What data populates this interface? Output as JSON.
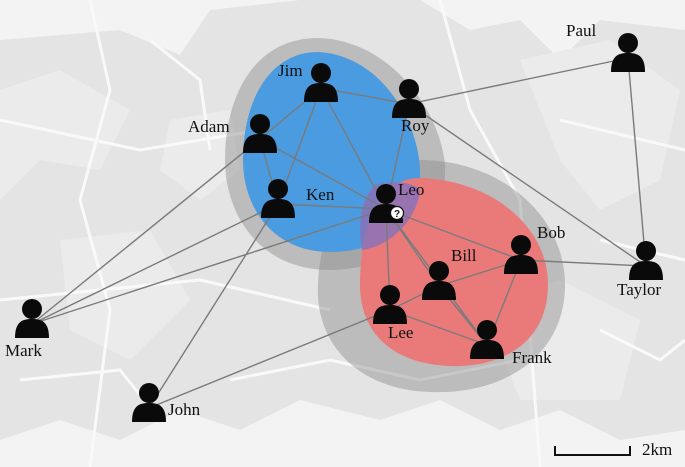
{
  "people": [
    {
      "id": "jim",
      "name": "Jim"
    },
    {
      "id": "roy",
      "name": "Roy"
    },
    {
      "id": "paul",
      "name": "Paul"
    },
    {
      "id": "adam",
      "name": "Adam"
    },
    {
      "id": "ken",
      "name": "Ken"
    },
    {
      "id": "leo",
      "name": "Leo",
      "flag": "?"
    },
    {
      "id": "bob",
      "name": "Bob"
    },
    {
      "id": "bill",
      "name": "Bill"
    },
    {
      "id": "taylor",
      "name": "Taylor"
    },
    {
      "id": "mark",
      "name": "Mark"
    },
    {
      "id": "lee",
      "name": "Lee"
    },
    {
      "id": "frank",
      "name": "Frank"
    },
    {
      "id": "john",
      "name": "John"
    }
  ],
  "edges": [
    [
      "jim",
      "roy"
    ],
    [
      "jim",
      "adam"
    ],
    [
      "jim",
      "ken"
    ],
    [
      "jim",
      "leo"
    ],
    [
      "roy",
      "paul"
    ],
    [
      "roy",
      "taylor"
    ],
    [
      "roy",
      "leo"
    ],
    [
      "paul",
      "taylor"
    ],
    [
      "adam",
      "ken"
    ],
    [
      "adam",
      "leo"
    ],
    [
      "adam",
      "mark"
    ],
    [
      "ken",
      "leo"
    ],
    [
      "ken",
      "mark"
    ],
    [
      "ken",
      "john"
    ],
    [
      "leo",
      "mark"
    ],
    [
      "leo",
      "bill"
    ],
    [
      "leo",
      "bob"
    ],
    [
      "leo",
      "lee"
    ],
    [
      "leo",
      "frank"
    ],
    [
      "bob",
      "taylor"
    ],
    [
      "bob",
      "bill"
    ],
    [
      "bob",
      "frank"
    ],
    [
      "bill",
      "lee"
    ],
    [
      "bill",
      "frank"
    ],
    [
      "lee",
      "frank"
    ],
    [
      "lee",
      "john"
    ]
  ],
  "groups": [
    {
      "id": "blue-group",
      "color": "#4a9be0"
    },
    {
      "id": "red-group",
      "color": "#ea7a7a"
    }
  ],
  "scale_bar": {
    "label": "2km"
  },
  "colors": {
    "map_bg": "#ececec",
    "map_land": "#e0e0e0",
    "edge": "#7a7a7a",
    "person": "#0a0a0a",
    "halo": "#8c8c8c"
  }
}
